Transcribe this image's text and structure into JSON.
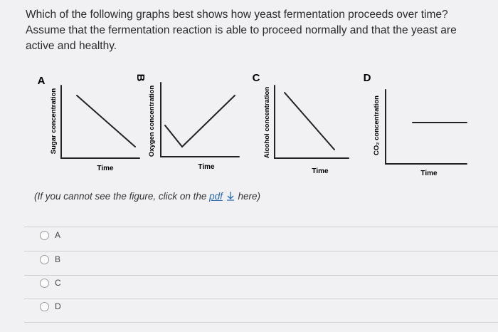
{
  "question": "Which of the following graphs best shows how yeast fermentation proceeds over time? Assume that the fermentation reaction is able to proceed normally and that the yeast are active and healthy.",
  "figure": {
    "graphs": [
      {
        "letter": "A",
        "y_label": "Sugar concentration",
        "x_label": "Time"
      },
      {
        "letter": "B",
        "y_label": "Oxygen concentration",
        "x_label": "Time"
      },
      {
        "letter": "C",
        "y_label": "Alcohol concentration",
        "x_label": "Time"
      },
      {
        "letter": "D",
        "y_label": "CO₂ concentration",
        "x_label": "Time"
      }
    ]
  },
  "note": {
    "before": "(If you cannot see the figure, click on the",
    "link": "pdf",
    "after": "here)"
  },
  "options": [
    "A",
    "B",
    "C",
    "D"
  ]
}
